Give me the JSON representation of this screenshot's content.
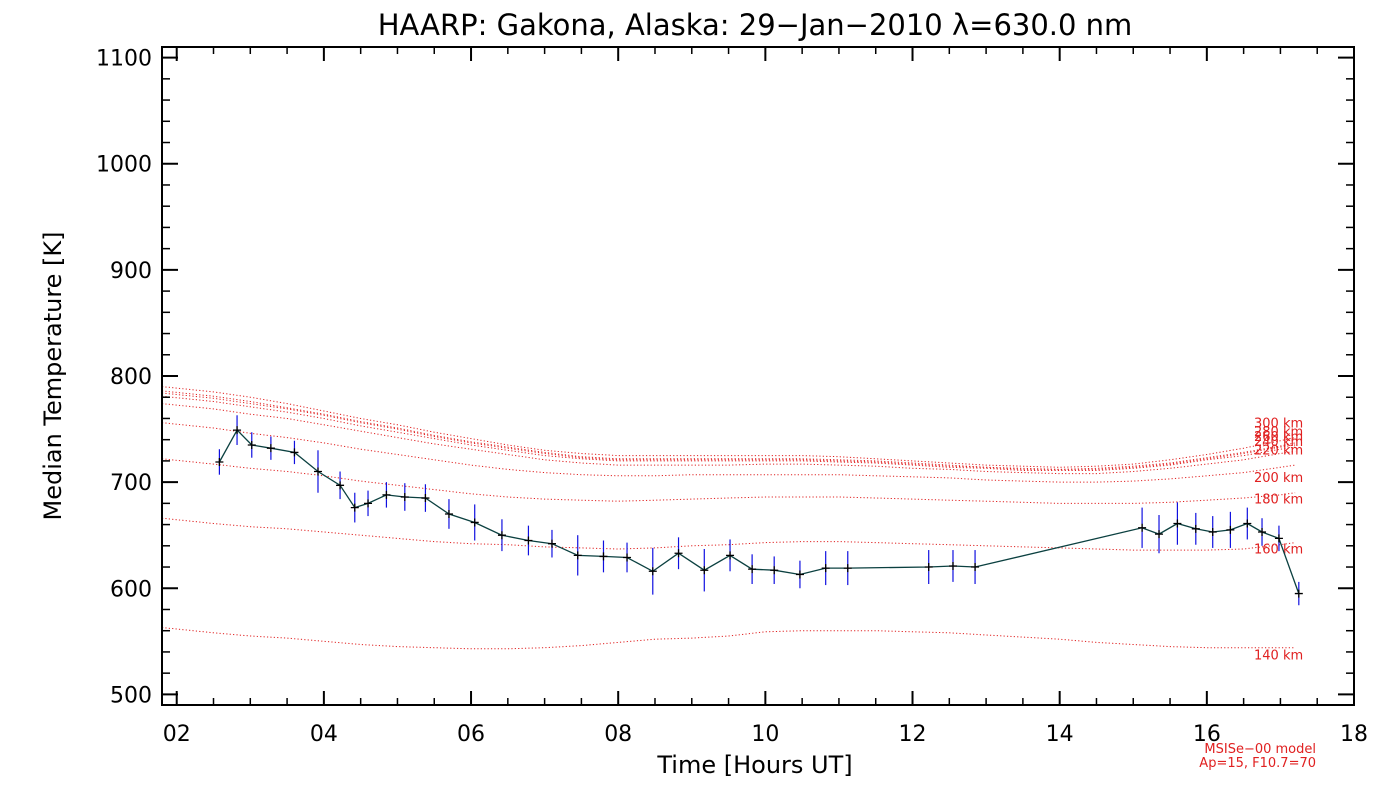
{
  "chart_data": {
    "type": "line",
    "title": "HAARP: Gakona,  Alaska: 29−Jan−2010 λ=630.0 nm",
    "xlabel": "Time [Hours UT]",
    "ylabel": "Median Temperature [K]",
    "xlim": [
      1.8,
      18
    ],
    "ylim": [
      490,
      1110
    ],
    "x_ticks": [
      2,
      4,
      6,
      8,
      10,
      12,
      14,
      16,
      18
    ],
    "x_tick_labels": [
      "02",
      "04",
      "06",
      "08",
      "10",
      "12",
      "14",
      "16",
      "18"
    ],
    "y_ticks": [
      500,
      600,
      700,
      800,
      900,
      1000,
      1100
    ],
    "y_tick_labels": [
      "500",
      "600",
      "700",
      "800",
      "900",
      "1000",
      "1100"
    ],
    "model_note": [
      "MSISe−00 model",
      "Ap=15, F10.7=70"
    ],
    "measured": {
      "x": [
        2.58,
        2.82,
        3.02,
        3.28,
        3.6,
        3.92,
        4.22,
        4.42,
        4.6,
        4.85,
        5.1,
        5.38,
        5.7,
        6.05,
        6.42,
        6.78,
        7.1,
        7.45,
        7.8,
        8.12,
        8.47,
        8.82,
        9.17,
        9.52,
        9.82,
        10.12,
        10.47,
        10.82,
        11.12,
        12.22,
        12.55,
        12.85,
        15.12,
        15.35,
        15.6,
        15.85,
        16.08,
        16.32,
        16.55,
        16.75,
        16.98,
        17.25
      ],
      "y": [
        719,
        749,
        735,
        732,
        728,
        710,
        697,
        676,
        680,
        688,
        686,
        685,
        670,
        662,
        650,
        645,
        642,
        631,
        630,
        629,
        616,
        633,
        617,
        631,
        618,
        617,
        613,
        619,
        619,
        620,
        621,
        620,
        657,
        651,
        661,
        656,
        653,
        655,
        661,
        653,
        647,
        595
      ],
      "err": [
        12,
        14,
        12,
        11,
        11,
        20,
        13,
        14,
        12,
        12,
        13,
        13,
        14,
        17,
        15,
        14,
        13,
        19,
        15,
        14,
        22,
        15,
        20,
        15,
        14,
        13,
        13,
        16,
        16,
        16,
        15,
        16,
        19,
        18,
        20,
        15,
        15,
        17,
        15,
        13,
        12,
        11
      ],
      "line_color": "#0b4040",
      "errbar_color": "#1010e0"
    },
    "model_curves": {
      "color": "#e02020",
      "x": [
        1.8,
        2.5,
        3.0,
        3.5,
        4.0,
        4.5,
        5.0,
        5.5,
        6.0,
        6.5,
        7.0,
        7.5,
        8.0,
        8.5,
        9.0,
        9.5,
        10.0,
        10.5,
        11.0,
        11.5,
        12.0,
        12.5,
        13.0,
        13.5,
        14.0,
        14.5,
        15.0,
        15.5,
        16.0,
        16.5,
        17.0,
        17.2
      ],
      "series": [
        {
          "name": "140 km",
          "values": [
            563,
            558,
            555,
            553,
            550,
            547,
            545,
            544,
            543,
            543,
            544,
            546,
            549,
            552,
            553,
            555,
            559,
            560,
            560,
            560,
            559,
            558,
            556,
            554,
            552,
            549,
            547,
            545,
            544,
            544,
            544,
            544
          ]
        },
        {
          "name": "160 km",
          "values": [
            666,
            661,
            658,
            656,
            653,
            650,
            647,
            644,
            642,
            641,
            639,
            638,
            637,
            638,
            640,
            641,
            643,
            644,
            644,
            643,
            642,
            641,
            640,
            639,
            638,
            637,
            636,
            636,
            636,
            637,
            641,
            643
          ]
        },
        {
          "name": "180 km",
          "values": [
            722,
            717,
            713,
            710,
            706,
            701,
            697,
            693,
            689,
            686,
            684,
            683,
            682,
            683,
            684,
            685,
            686,
            686,
            686,
            685,
            684,
            683,
            682,
            681,
            680,
            680,
            680,
            681,
            683,
            685,
            688,
            690
          ]
        },
        {
          "name": "200 km",
          "values": [
            756,
            751,
            746,
            742,
            737,
            731,
            726,
            721,
            716,
            712,
            709,
            707,
            706,
            706,
            707,
            707,
            707,
            707,
            707,
            706,
            705,
            704,
            702,
            701,
            700,
            700,
            701,
            703,
            706,
            709,
            714,
            716
          ]
        },
        {
          "name": "220 km",
          "values": [
            774,
            769,
            764,
            760,
            754,
            748,
            742,
            736,
            731,
            726,
            721,
            718,
            716,
            716,
            716,
            716,
            717,
            717,
            716,
            715,
            713,
            712,
            710,
            709,
            708,
            708,
            710,
            713,
            717,
            721,
            727,
            729
          ]
        },
        {
          "name": "240 km",
          "values": [
            781,
            776,
            771,
            766,
            760,
            753,
            747,
            741,
            735,
            730,
            725,
            722,
            720,
            720,
            720,
            720,
            720,
            720,
            719,
            718,
            716,
            714,
            713,
            711,
            711,
            711,
            713,
            716,
            721,
            725,
            731,
            733
          ]
        },
        {
          "name": "260 km",
          "values": [
            784,
            779,
            774,
            769,
            763,
            756,
            750,
            743,
            737,
            732,
            727,
            723,
            721,
            721,
            721,
            721,
            721,
            721,
            720,
            719,
            717,
            715,
            714,
            712,
            712,
            712,
            714,
            717,
            722,
            727,
            733,
            735
          ]
        },
        {
          "name": "280 km",
          "values": [
            786,
            781,
            776,
            770,
            764,
            757,
            751,
            744,
            738,
            733,
            728,
            724,
            722,
            722,
            722,
            722,
            722,
            722,
            721,
            720,
            718,
            716,
            714,
            713,
            712,
            713,
            715,
            718,
            723,
            728,
            734,
            737
          ]
        },
        {
          "name": "300 km",
          "values": [
            790,
            785,
            780,
            774,
            767,
            760,
            754,
            747,
            741,
            735,
            730,
            727,
            725,
            725,
            725,
            725,
            725,
            725,
            724,
            722,
            720,
            718,
            716,
            715,
            714,
            715,
            717,
            721,
            726,
            732,
            739,
            742
          ]
        }
      ]
    },
    "altitude_labels": [
      "300 km",
      "280 km",
      "260 km",
      "240 km",
      "220 km",
      "200 km",
      "180 km",
      "160 km",
      "140 km"
    ]
  }
}
